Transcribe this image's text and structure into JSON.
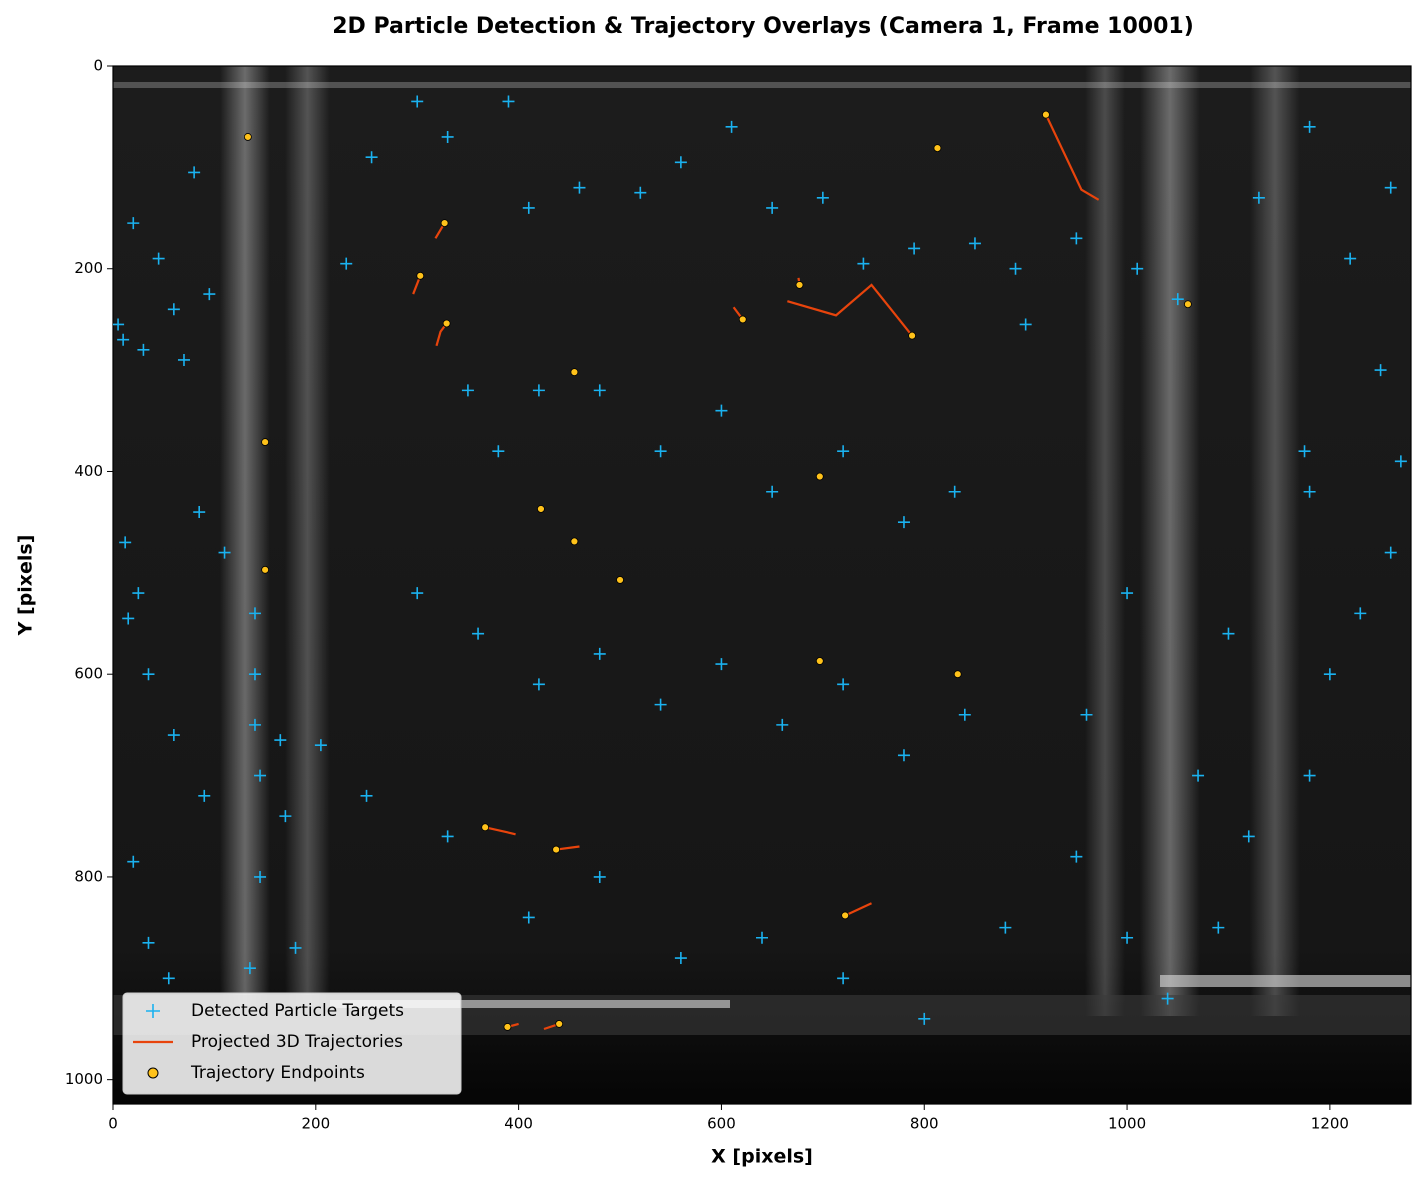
{
  "chart_data": {
    "type": "scatter",
    "title": "2D Particle Detection & Trajectory Overlays (Camera 1, Frame 10001)",
    "xlabel": "X [pixels]",
    "ylabel": "Y [pixels]",
    "xlim": [
      0,
      1280
    ],
    "ylim": [
      1024,
      0
    ],
    "xticks": [
      0,
      200,
      400,
      600,
      800,
      1000,
      1200
    ],
    "yticks": [
      0,
      200,
      400,
      600,
      800,
      1000
    ],
    "legend": "lower left",
    "series": [
      {
        "name": "Detected Particle Targets",
        "type": "scatter",
        "marker": "+",
        "color": "#1ab2f0",
        "x": [
          5,
          10,
          20,
          30,
          45,
          60,
          70,
          80,
          95,
          110,
          12,
          25,
          35,
          60,
          90,
          20,
          35,
          55,
          15,
          85,
          140,
          140,
          145,
          145,
          135,
          140,
          165,
          170,
          180,
          205,
          230,
          255,
          300,
          330,
          390,
          410,
          460,
          520,
          560,
          610,
          650,
          700,
          740,
          790,
          850,
          890,
          900,
          950,
          1010,
          1050,
          350,
          380,
          420,
          480,
          540,
          600,
          650,
          720,
          780,
          830,
          300,
          360,
          420,
          480,
          540,
          600,
          660,
          720,
          780,
          840,
          250,
          330,
          410,
          480,
          560,
          640,
          720,
          800,
          880,
          950,
          1000,
          1040,
          1090,
          1120,
          1180,
          1200,
          1230,
          1260,
          1270,
          1250,
          1220,
          1260,
          1180,
          1130,
          1180,
          1175,
          1100,
          1000,
          960,
          1070
        ],
        "y": [
          255,
          270,
          155,
          280,
          190,
          240,
          290,
          105,
          225,
          480,
          470,
          520,
          600,
          660,
          720,
          785,
          865,
          900,
          545,
          440,
          540,
          600,
          700,
          800,
          890,
          650,
          665,
          740,
          870,
          670,
          195,
          90,
          35,
          70,
          35,
          140,
          120,
          125,
          95,
          60,
          140,
          130,
          195,
          180,
          175,
          200,
          255,
          170,
          200,
          230,
          320,
          380,
          320,
          320,
          380,
          340,
          420,
          380,
          450,
          420,
          520,
          560,
          610,
          580,
          630,
          590,
          650,
          610,
          680,
          640,
          720,
          760,
          840,
          800,
          880,
          860,
          900,
          940,
          850,
          780,
          860,
          920,
          850,
          760,
          700,
          600,
          540,
          480,
          390,
          300,
          190,
          120,
          60,
          130,
          420,
          380,
          560,
          520,
          640,
          700
        ]
      },
      {
        "name": "Projected 3D Trajectories",
        "type": "line",
        "color": "#e8440c",
        "x": [
          920,
          955,
          972,
          null,
          665,
          713,
          748,
          788,
          null,
          296,
          303,
          null,
          318,
          327,
          null,
          319,
          323,
          329,
          null,
          612,
          621,
          null,
          676,
          677,
          null,
          367,
          389,
          397,
          null,
          437,
          460,
          null,
          722,
          748,
          null,
          389,
          400,
          null,
          425,
          440
        ],
        "y": [
          48,
          122,
          132,
          null,
          232,
          246,
          216,
          266,
          null,
          225,
          207,
          null,
          170,
          155,
          null,
          276,
          262,
          254,
          null,
          238,
          250,
          null,
          209,
          216,
          null,
          751,
          756,
          758,
          null,
          773,
          770,
          null,
          838,
          826,
          null,
          948,
          945,
          null,
          950,
          945
        ]
      },
      {
        "name": "Trajectory Endpoints",
        "type": "scatter",
        "marker": "o",
        "color": "#ffc21a",
        "x": [
          920,
          788,
          303,
          327,
          329,
          621,
          677,
          367,
          437,
          722,
          389,
          440,
          133,
          813,
          1060,
          455,
          150,
          697,
          422,
          455,
          150,
          500,
          697,
          833
        ],
        "y": [
          48,
          266,
          207,
          155,
          254,
          250,
          216,
          751,
          773,
          838,
          948,
          945,
          70,
          81,
          235,
          302,
          371,
          405,
          437,
          469,
          497,
          507,
          587,
          600
        ]
      }
    ]
  }
}
